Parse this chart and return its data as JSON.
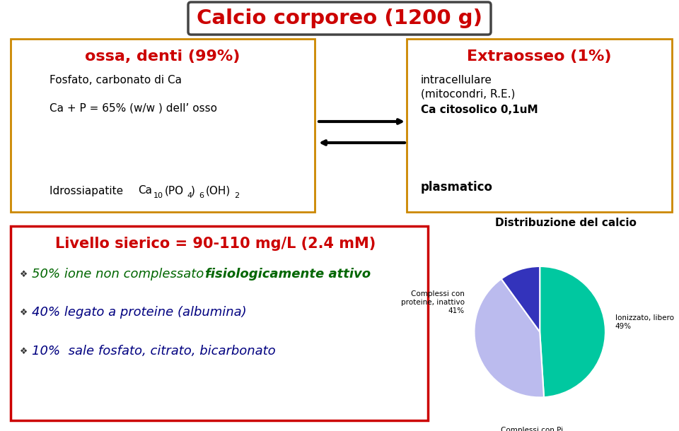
{
  "title": "Calcio corporeo (1200 g)",
  "title_color": "#CC0000",
  "title_fontsize": 21,
  "box1_title": "ossa, denti (99%)",
  "box1_title_color": "#CC0000",
  "box1_border": "#CC8800",
  "box2_title": "Extraosseo (1%)",
  "box2_title_color": "#CC0000",
  "box2_border": "#CC8800",
  "box3_title": "Livello sierico = 90-110 mg/L (2.4 mM)",
  "box3_title_color": "#CC0000",
  "box3_border": "#CC0000",
  "pie_title": "Distribuzione del calcio",
  "pie_title_fontsize": 11,
  "pie_slices": [
    49,
    41,
    10
  ],
  "pie_colors": [
    "#00C8A0",
    "#BBBBEE",
    "#3333BB"
  ],
  "pie_label_fontsize": 7.5,
  "background_color": "#FFFFFF"
}
